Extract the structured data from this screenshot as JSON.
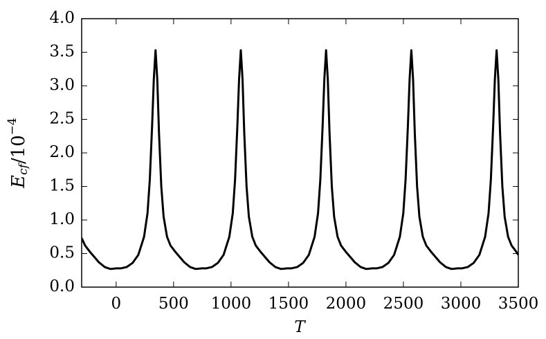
{
  "chart_data": {
    "type": "line",
    "xlabel": "T",
    "ylabel": {
      "base": "E",
      "sub": "cf",
      "mid": "/10",
      "sup": "−4"
    },
    "x": [
      -300,
      -270,
      -230,
      -190,
      -150,
      -100,
      -50,
      3,
      43,
      93,
      143,
      193,
      243,
      273,
      293,
      313,
      328,
      343,
      358,
      373,
      393,
      413,
      443,
      473,
      513,
      553,
      593,
      643,
      693,
      745,
      785,
      835,
      885,
      935,
      985,
      1015,
      1035,
      1055,
      1070,
      1085,
      1100,
      1115,
      1135,
      1155,
      1185,
      1215,
      1255,
      1295,
      1335,
      1385,
      1435,
      1487,
      1527,
      1577,
      1627,
      1677,
      1727,
      1757,
      1777,
      1797,
      1812,
      1827,
      1842,
      1857,
      1877,
      1897,
      1927,
      1957,
      1997,
      2037,
      2077,
      2127,
      2177,
      2229,
      2269,
      2319,
      2369,
      2419,
      2469,
      2499,
      2519,
      2539,
      2554,
      2569,
      2584,
      2599,
      2619,
      2639,
      2669,
      2699,
      2739,
      2779,
      2819,
      2869,
      2919,
      2971,
      3011,
      3061,
      3111,
      3161,
      3211,
      3241,
      3261,
      3281,
      3296,
      3311,
      3326,
      3341,
      3361,
      3381,
      3411,
      3441,
      3481,
      3500
    ],
    "series": [
      {
        "color": "#000000",
        "values": [
          0.73,
          0.62,
          0.53,
          0.45,
          0.37,
          0.3,
          0.27,
          0.28,
          0.28,
          0.3,
          0.36,
          0.48,
          0.75,
          1.1,
          1.6,
          2.4,
          3.1,
          3.53,
          3.1,
          2.3,
          1.5,
          1.05,
          0.75,
          0.62,
          0.53,
          0.45,
          0.37,
          0.3,
          0.27,
          0.28,
          0.28,
          0.3,
          0.36,
          0.48,
          0.75,
          1.1,
          1.6,
          2.4,
          3.1,
          3.53,
          3.1,
          2.3,
          1.5,
          1.05,
          0.75,
          0.62,
          0.53,
          0.45,
          0.37,
          0.3,
          0.27,
          0.28,
          0.28,
          0.3,
          0.36,
          0.48,
          0.75,
          1.1,
          1.6,
          2.4,
          3.1,
          3.53,
          3.1,
          2.3,
          1.5,
          1.05,
          0.75,
          0.62,
          0.53,
          0.45,
          0.37,
          0.3,
          0.27,
          0.28,
          0.28,
          0.3,
          0.36,
          0.48,
          0.75,
          1.1,
          1.6,
          2.4,
          3.1,
          3.53,
          3.1,
          2.3,
          1.5,
          1.05,
          0.75,
          0.62,
          0.53,
          0.45,
          0.37,
          0.3,
          0.27,
          0.28,
          0.28,
          0.3,
          0.36,
          0.48,
          0.75,
          1.1,
          1.6,
          2.4,
          3.1,
          3.53,
          3.1,
          2.3,
          1.5,
          1.05,
          0.75,
          0.62,
          0.53,
          0.48
        ]
      }
    ],
    "xlim": [
      -300,
      3500
    ],
    "xticks": [
      0,
      500,
      1000,
      1500,
      2000,
      2500,
      3000,
      3500
    ],
    "ylim": [
      0,
      4
    ],
    "yticks": [
      {
        "value": 0,
        "label": "0.0"
      },
      {
        "value": 0.5,
        "label": "0.5"
      },
      {
        "value": 1,
        "label": "1.0"
      },
      {
        "value": 1.5,
        "label": "1.5"
      },
      {
        "value": 2,
        "label": "2.0"
      },
      {
        "value": 2.5,
        "label": "2.5"
      },
      {
        "value": 3,
        "label": "3.0"
      },
      {
        "value": 3.5,
        "label": "3.5"
      },
      {
        "value": 4,
        "label": "4.0"
      }
    ]
  }
}
